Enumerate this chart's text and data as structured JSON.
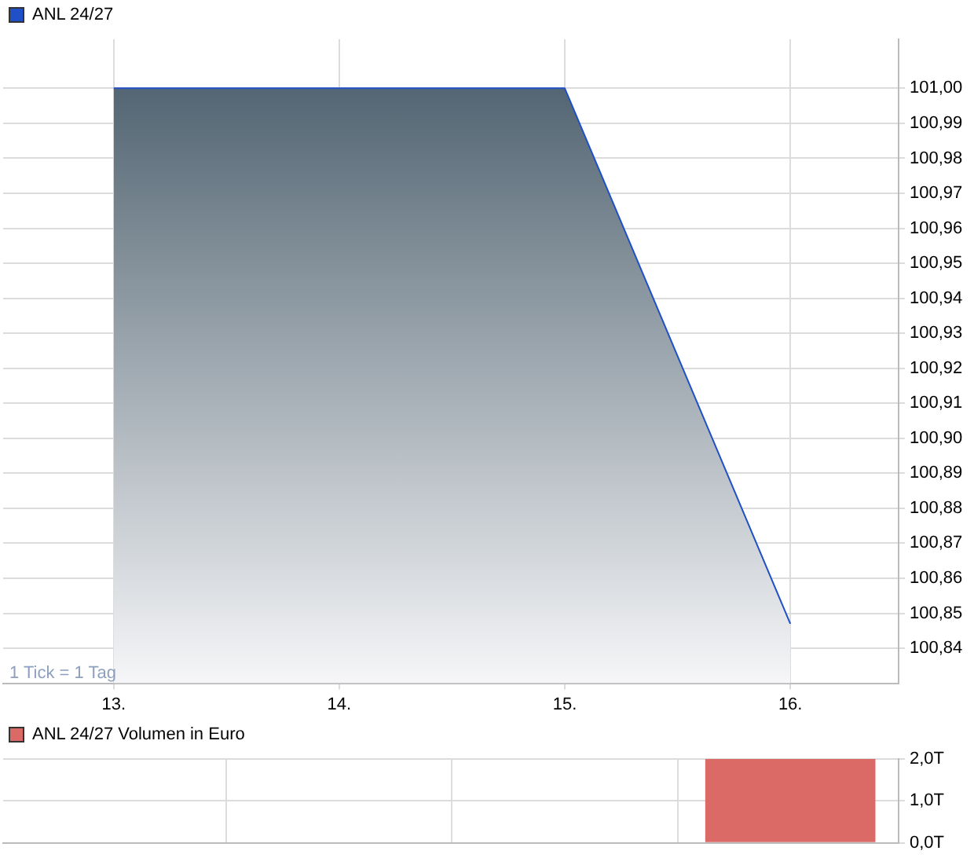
{
  "chart_data": [
    {
      "type": "area",
      "title": null,
      "x": [
        13,
        14,
        15,
        16
      ],
      "series": [
        {
          "name": "ANL 24/27",
          "color": "#2050c8",
          "values": [
            101.0,
            101.0,
            101.0,
            100.847
          ]
        }
      ],
      "xlim": [
        12.51,
        16.48
      ],
      "xticks": [
        {
          "value": 13,
          "label": "13."
        },
        {
          "value": 14,
          "label": "14."
        },
        {
          "value": 15,
          "label": "15."
        },
        {
          "value": 16,
          "label": "16."
        }
      ],
      "ylim": [
        100.83,
        101.014
      ],
      "yticks": [
        {
          "value": 100.84,
          "label": "100,84"
        },
        {
          "value": 100.85,
          "label": "100,85"
        },
        {
          "value": 100.86,
          "label": "100,86"
        },
        {
          "value": 100.87,
          "label": "100,87"
        },
        {
          "value": 100.88,
          "label": "100,88"
        },
        {
          "value": 100.89,
          "label": "100,89"
        },
        {
          "value": 100.9,
          "label": "100,90"
        },
        {
          "value": 100.91,
          "label": "100,91"
        },
        {
          "value": 100.92,
          "label": "100,92"
        },
        {
          "value": 100.93,
          "label": "100,93"
        },
        {
          "value": 100.94,
          "label": "100,94"
        },
        {
          "value": 100.95,
          "label": "100,95"
        },
        {
          "value": 100.96,
          "label": "100,96"
        },
        {
          "value": 100.97,
          "label": "100,97"
        },
        {
          "value": 100.98,
          "label": "100,98"
        },
        {
          "value": 100.99,
          "label": "100,99"
        },
        {
          "value": 101.0,
          "label": "101,00"
        }
      ],
      "annotations": [
        "1 Tick = 1 Tag"
      ],
      "grid": true,
      "legend": "top left"
    },
    {
      "type": "bar",
      "x": [
        13,
        14,
        15,
        16
      ],
      "series": [
        {
          "name": "ANL 24/27 Volumen in Euro",
          "color": "#db6a67",
          "values": [
            0,
            0,
            0,
            2.0
          ]
        }
      ],
      "xlim": [
        12.51,
        16.48
      ],
      "xticks": [
        13,
        14,
        15,
        16
      ],
      "ylim": [
        0,
        2
      ],
      "yticks": [
        {
          "value": 0,
          "label": "0,0T"
        },
        {
          "value": 1,
          "label": "1,0T"
        },
        {
          "value": 2,
          "label": "2,0T"
        }
      ],
      "tick_labels": "y",
      "grid": true,
      "legend": "top left"
    }
  ]
}
